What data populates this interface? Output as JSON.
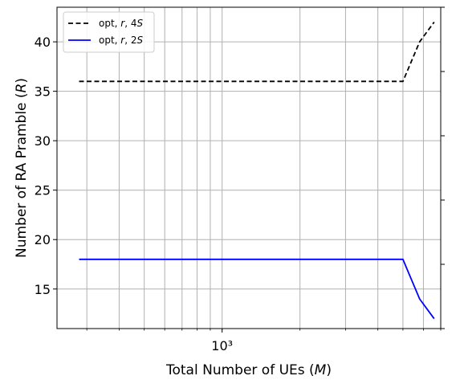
{
  "chart_data": {
    "type": "line",
    "xscale": "log",
    "xlabel": "Total Number of UEs (M)",
    "ylabel": "Number of RA Pramble (R)",
    "xlim": [
      230,
      7000
    ],
    "ylim": [
      11,
      43.5
    ],
    "xticks": [
      {
        "value": 1000,
        "label": "10³"
      }
    ],
    "yticks": [
      15,
      20,
      25,
      30,
      35,
      40
    ],
    "grid": true,
    "legend_position": "top-left",
    "series": [
      {
        "name": "opt, r, 4S",
        "color": "#000000",
        "dash": "dashed",
        "x": [
          280,
          5000,
          5800,
          6600
        ],
        "y": [
          36,
          36,
          40,
          42
        ]
      },
      {
        "name": "opt, r, 2S",
        "color": "#0000ff",
        "dash": "solid",
        "x": [
          280,
          5000,
          5800,
          6600
        ],
        "y": [
          18,
          18,
          14,
          12
        ]
      }
    ]
  }
}
